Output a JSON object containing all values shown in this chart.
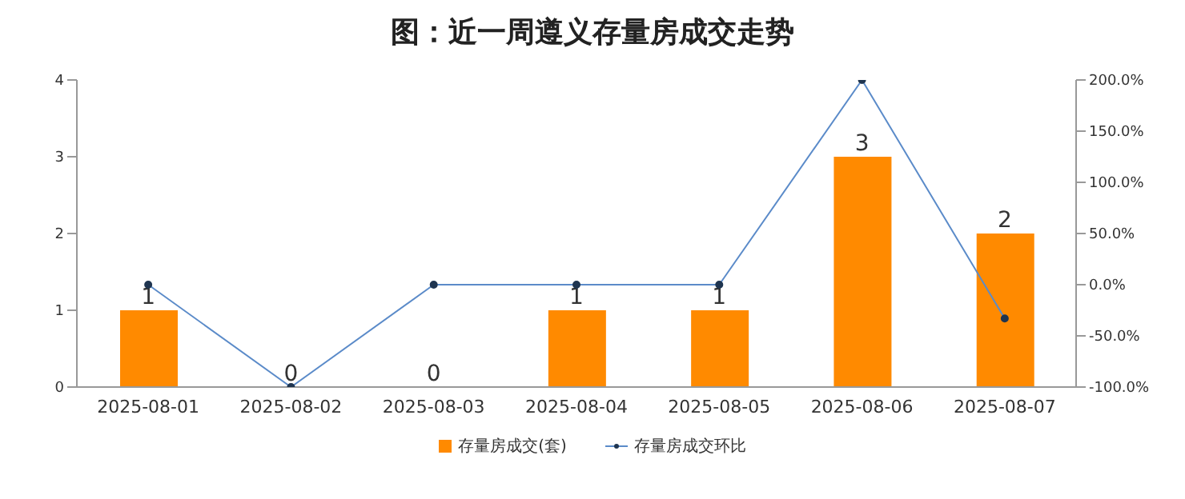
{
  "chart_data": {
    "type": "bar",
    "title": "图：近一周遵义存量房成交走势",
    "categories": [
      "2025-08-01",
      "2025-08-02",
      "2025-08-03",
      "2025-08-04",
      "2025-08-05",
      "2025-08-06",
      "2025-08-07"
    ],
    "series": [
      {
        "name": "存量房成交(套)",
        "color": "#ff8a00",
        "values": [
          1,
          0,
          0,
          1,
          1,
          3,
          2
        ],
        "value_labels": [
          "1",
          "0",
          "0",
          "1",
          "1",
          "3",
          "2"
        ]
      },
      {
        "name": "存量房成交环比",
        "type": "line",
        "axis": "y2",
        "color": "#5b8bc9",
        "marker": "circle",
        "values": [
          0,
          -100,
          0,
          0,
          0,
          200,
          -33
        ]
      }
    ],
    "ylim": [
      0,
      4
    ],
    "yticks": [
      0,
      1,
      2,
      3,
      4
    ],
    "y2lim": [
      -100,
      200
    ],
    "y2ticks": [
      {
        "value": -100,
        "label": "-100.0%"
      },
      {
        "value": -50,
        "label": "-50.0%"
      },
      {
        "value": 0,
        "label": "0.0%"
      },
      {
        "value": 50,
        "label": "50.0%"
      },
      {
        "value": 100,
        "label": "100.0%"
      },
      {
        "value": 150,
        "label": "150.0%"
      },
      {
        "value": 200,
        "label": "200.0%"
      }
    ],
    "legend": "bottom"
  }
}
